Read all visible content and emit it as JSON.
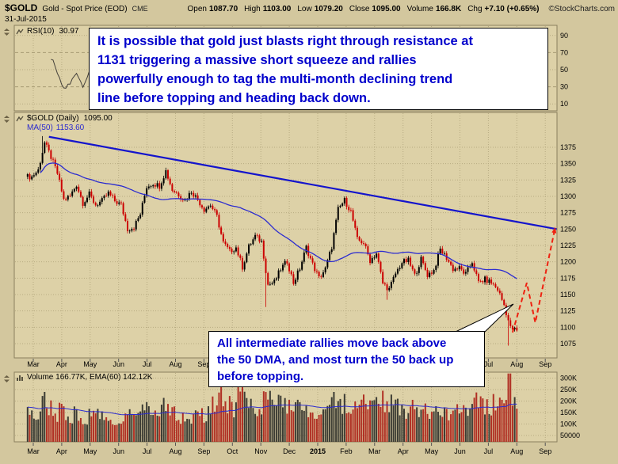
{
  "header": {
    "symbol": "$GOLD",
    "name": "Gold - Spot Price (EOD)",
    "exchange": "CME",
    "date": "31-Jul-2015",
    "fields": [
      {
        "label": "Open",
        "value": "1087.70"
      },
      {
        "label": "High",
        "value": "1103.00"
      },
      {
        "label": "Low",
        "value": "1079.20"
      },
      {
        "label": "Close",
        "value": "1095.00"
      },
      {
        "label": "Volume",
        "value": "166.8K"
      },
      {
        "label": "Chg",
        "value": "+7.10 (+0.65%)"
      }
    ],
    "copyright": "©StockCharts.com"
  },
  "panels": {
    "rsi": {
      "label": "RSI(10)",
      "value": "30.97"
    },
    "main": {
      "label": "$GOLD (Daily)",
      "value": "1095.00",
      "ma_label": "MA(50)",
      "ma_value": "1153.60"
    },
    "volume": {
      "label": "Volume 166.77K, EMA(60) 142.12K"
    }
  },
  "annotations": {
    "top": {
      "lines": [
        "It is possible that gold just blasts right through resistance at",
        "1131 triggering a massive short squeeze and rallies",
        "powerfully enough to tag the multi-month declining trend",
        "line before topping and heading back down."
      ]
    },
    "bottom": {
      "lines": [
        "All intermediate rallies move back above",
        "the 50 DMA, and most turn the 50 back up",
        "before topping."
      ]
    }
  },
  "colors": {
    "page_bg": "#d3c79e",
    "plot_bg": "#ddd1a7",
    "grid": "#b7ab82",
    "panel_border": "#8a7f5e",
    "text": "#000000",
    "annotation_blue": "#0000cc",
    "ma_blue": "#2b2bd0",
    "trend_blue": "#1414cc",
    "candle_up": "#000000",
    "candle_down": "#cc0000",
    "projection_red": "#ee2211",
    "volume_up": "#3c3c34",
    "volume_down": "#b03024",
    "rsi_line": "#44403a",
    "annotation_bg": "#ffffff"
  },
  "chart_data": {
    "type": "candlestick",
    "title": "$GOLD (Daily)",
    "subpanels": [
      "RSI(10)",
      "price+MA(50)+trendline",
      "volume+EMA(60)"
    ],
    "x_months": [
      "Mar",
      "Apr",
      "May",
      "Jun",
      "Jul",
      "Aug",
      "Sep",
      "Oct",
      "Nov",
      "Dec",
      "2015",
      "Feb",
      "Mar",
      "Apr",
      "May",
      "Jun",
      "Jul",
      "Aug",
      "Sep"
    ],
    "price_ticks": [
      1375,
      1350,
      1325,
      1300,
      1275,
      1250,
      1225,
      1200,
      1175,
      1150,
      1125,
      1100,
      1075
    ],
    "price_range": [
      1053,
      1428
    ],
    "rsi_ticks": [
      90,
      70,
      50,
      30,
      10
    ],
    "rsi_range": [
      0,
      100
    ],
    "rsi_value": 30.97,
    "volume_ticks": [
      {
        "v": 300,
        "label": "300K"
      },
      {
        "v": 250,
        "label": "250K"
      },
      {
        "v": 200,
        "label": "200K"
      },
      {
        "v": 150,
        "label": "150K"
      },
      {
        "v": 100,
        "label": "100K"
      },
      {
        "v": 50,
        "label": "50000"
      }
    ],
    "volume_range_k": [
      22,
      326
    ],
    "weekly_close": [
      1330,
      1340,
      1382,
      1360,
      1335,
      1295,
      1300,
      1318,
      1290,
      1303,
      1287,
      1293,
      1305,
      1293,
      1287,
      1250,
      1253,
      1273,
      1315,
      1320,
      1316,
      1339,
      1310,
      1303,
      1294,
      1308,
      1295,
      1280,
      1287,
      1269,
      1229,
      1216,
      1222,
      1192,
      1223,
      1239,
      1231,
      1165,
      1169,
      1189,
      1201,
      1168,
      1190,
      1222,
      1196,
      1175,
      1189,
      1223,
      1280,
      1294,
      1277,
      1234,
      1229,
      1202,
      1213,
      1167,
      1158,
      1182,
      1199,
      1202,
      1179,
      1204,
      1180,
      1187,
      1219,
      1206,
      1189,
      1190,
      1181,
      1200,
      1168,
      1173,
      1168,
      1158,
      1134,
      1099,
      1095
    ],
    "extremes": [
      {
        "week": 2,
        "type": "high",
        "price": 1392
      },
      {
        "week": 37,
        "type": "low",
        "price": 1131
      },
      {
        "week": 56,
        "type": "low",
        "price": 1142
      },
      {
        "week": 75,
        "type": "low",
        "price": 1072
      }
    ],
    "weekly_volume_k": [
      150,
      140,
      190,
      170,
      150,
      160,
      130,
      140,
      120,
      135,
      125,
      130,
      140,
      120,
      115,
      150,
      140,
      130,
      160,
      145,
      135,
      170,
      160,
      140,
      130,
      125,
      135,
      140,
      150,
      180,
      210,
      190,
      170,
      230,
      200,
      180,
      170,
      240,
      200,
      190,
      180,
      200,
      190,
      170,
      150,
      130,
      160,
      180,
      220,
      200,
      190,
      210,
      180,
      200,
      190,
      230,
      210,
      180,
      170,
      160,
      170,
      180,
      160,
      150,
      190,
      170,
      160,
      150,
      170,
      180,
      190,
      180,
      170,
      200,
      240,
      280,
      230
    ],
    "last_volume_k": 166.8,
    "ma_period": 50,
    "volume_ema_period": 60,
    "trendline": {
      "m1": 0.55,
      "p1": 1391,
      "m2": 18.4,
      "p2": 1250
    },
    "projection": [
      [
        16.85,
        1092
      ],
      [
        17.35,
        1168
      ],
      [
        17.65,
        1107
      ],
      [
        18.35,
        1253
      ]
    ]
  }
}
